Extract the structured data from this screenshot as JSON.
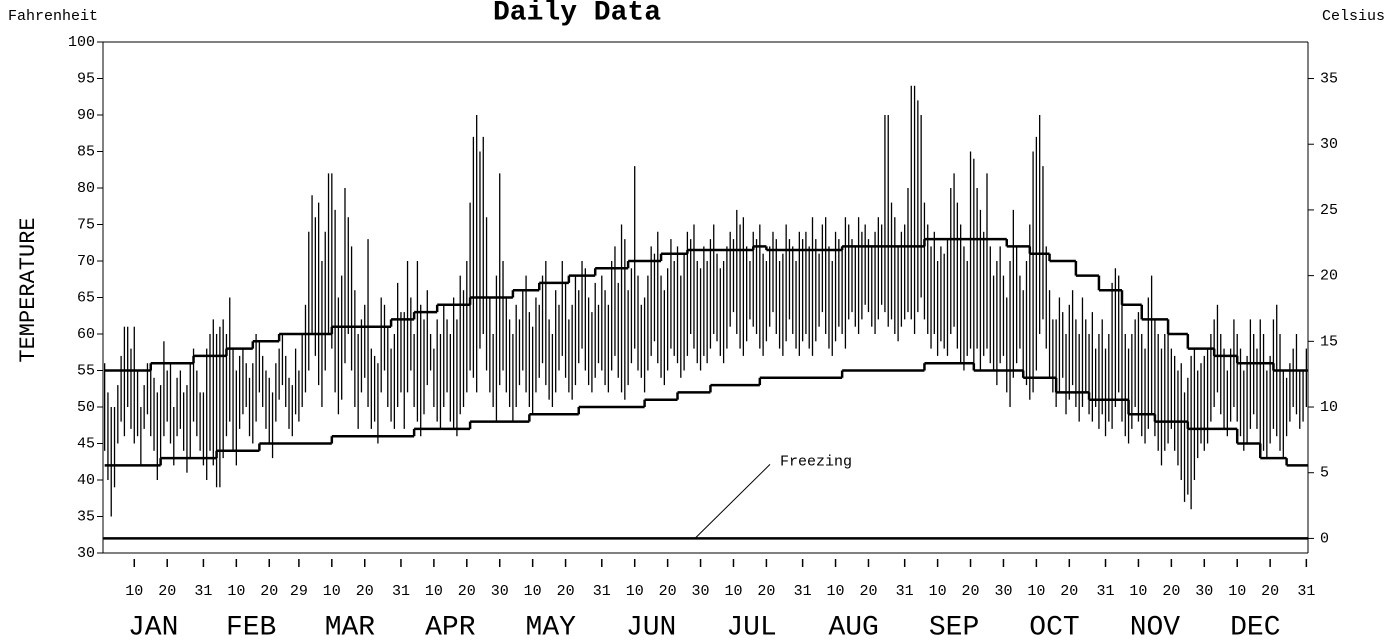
{
  "chart_data": {
    "type": "hilo",
    "title": "Daily Data",
    "y_label": "TEMPERATURE",
    "y_unit": "Fahrenheit",
    "y2_unit": "Celsius",
    "color": "#000000",
    "xlim": [
      0.5,
      366.5
    ],
    "ylim": [
      30,
      100
    ],
    "yticks": [
      30,
      35,
      40,
      45,
      50,
      55,
      60,
      65,
      70,
      75,
      80,
      85,
      90,
      95,
      100
    ],
    "y2lim": [
      -1.11,
      37.78
    ],
    "y2ticks": [
      0,
      5,
      10,
      15,
      20,
      25,
      30,
      35
    ],
    "xticks": [
      10,
      20,
      31,
      {
        "value": 41,
        "label": "10"
      },
      {
        "value": 51,
        "label": "20"
      },
      {
        "value": 60,
        "label": "29"
      },
      {
        "value": 70,
        "label": "10"
      },
      {
        "value": 80,
        "label": "20"
      },
      {
        "value": 91,
        "label": "31"
      },
      {
        "value": 101,
        "label": "10"
      },
      {
        "value": 111,
        "label": "20"
      },
      {
        "value": 121,
        "label": "30"
      },
      {
        "value": 131,
        "label": "10"
      },
      {
        "value": 141,
        "label": "20"
      },
      {
        "value": 152,
        "label": "31"
      },
      {
        "value": 162,
        "label": "10"
      },
      {
        "value": 172,
        "label": "20"
      },
      {
        "value": 182,
        "label": "30"
      },
      {
        "value": 192,
        "label": "10"
      },
      {
        "value": 202,
        "label": "20"
      },
      {
        "value": 213,
        "label": "31"
      },
      {
        "value": 223,
        "label": "10"
      },
      {
        "value": 233,
        "label": "20"
      },
      {
        "value": 244,
        "label": "31"
      },
      {
        "value": 254,
        "label": "10"
      },
      {
        "value": 264,
        "label": "20"
      },
      {
        "value": 274,
        "label": "30"
      },
      {
        "value": 284,
        "label": "10"
      },
      {
        "value": 294,
        "label": "20"
      },
      {
        "value": 305,
        "label": "31"
      },
      {
        "value": 315,
        "label": "10"
      },
      {
        "value": 325,
        "label": "20"
      },
      {
        "value": 335,
        "label": "30"
      },
      {
        "value": 345,
        "label": "10"
      },
      {
        "value": 355,
        "label": "20"
      },
      {
        "value": 366,
        "label": "31"
      }
    ],
    "months": [
      "JAN",
      "FEB",
      "MAR",
      "APR",
      "MAY",
      "JUN",
      "JUL",
      "AUG",
      "SEP",
      "OCT",
      "NOV",
      "DEC"
    ],
    "freezing": {
      "value": 32,
      "label": "Freezing"
    },
    "lows": [
      44,
      40,
      35,
      39,
      45,
      48,
      46,
      50,
      47,
      45,
      46,
      42,
      47,
      49,
      46,
      44,
      40,
      43,
      46,
      48,
      45,
      42,
      46,
      47,
      44,
      41,
      43,
      48,
      46,
      44,
      42,
      40,
      44,
      42,
      39,
      39,
      43,
      46,
      48,
      44,
      42,
      47,
      49,
      50,
      46,
      45,
      48,
      52,
      50,
      47,
      45,
      43,
      48,
      51,
      53,
      50,
      47,
      46,
      49,
      48,
      50,
      52,
      55,
      60,
      57,
      53,
      50,
      55,
      60,
      58,
      52,
      49,
      51,
      56,
      60,
      55,
      50,
      47,
      52,
      54,
      50,
      47,
      48,
      45,
      52,
      55,
      50,
      48,
      47,
      50,
      52,
      47,
      52,
      55,
      50,
      48,
      46,
      49,
      53,
      55,
      50,
      48,
      47,
      50,
      52,
      48,
      47,
      46,
      49,
      50,
      52,
      55,
      54,
      52,
      58,
      60,
      55,
      52,
      50,
      48,
      53,
      55,
      52,
      50,
      48,
      50,
      53,
      55,
      52,
      50,
      49,
      52,
      54,
      56,
      53,
      51,
      50,
      52,
      55,
      57,
      54,
      52,
      51,
      53,
      56,
      58,
      55,
      53,
      52,
      54,
      56,
      55,
      53,
      52,
      55,
      57,
      54,
      52,
      51,
      53,
      56,
      58,
      55,
      54,
      52,
      55,
      57,
      59,
      56,
      54,
      53,
      55,
      58,
      57,
      56,
      54,
      55,
      57,
      60,
      58,
      56,
      55,
      57,
      56,
      58,
      60,
      59,
      57,
      56,
      58,
      61,
      63,
      60,
      58,
      57,
      59,
      62,
      61,
      60,
      58,
      57,
      59,
      61,
      63,
      60,
      58,
      57,
      59,
      62,
      60,
      58,
      57,
      59,
      60,
      58,
      57,
      59,
      61,
      63,
      60,
      58,
      57,
      59,
      61,
      60,
      58,
      62,
      63,
      61,
      60,
      62,
      64,
      63,
      61,
      60,
      62,
      64,
      63,
      61,
      62,
      60,
      59,
      61,
      62,
      63,
      62,
      60,
      63,
      65,
      62,
      60,
      58,
      60,
      57,
      59,
      58,
      57,
      60,
      61,
      58,
      56,
      55,
      57,
      58,
      56,
      58,
      55,
      57,
      58,
      56,
      55,
      53,
      56,
      57,
      52,
      50,
      54,
      56,
      58,
      55,
      53,
      51,
      52,
      55,
      60,
      62,
      58,
      54,
      52,
      50,
      52,
      54,
      49,
      51,
      53,
      50,
      48,
      50,
      52,
      49,
      48,
      50,
      47,
      49,
      46,
      48,
      47,
      50,
      52,
      48,
      46,
      45,
      47,
      50,
      48,
      46,
      45,
      47,
      49,
      46,
      44,
      42,
      44,
      45,
      47,
      44,
      42,
      40,
      37,
      38,
      36,
      40,
      43,
      45,
      44,
      45,
      48,
      50,
      52,
      49,
      47,
      46,
      48,
      50,
      48,
      46,
      44,
      45,
      47,
      49,
      47,
      45,
      44,
      43,
      45,
      47,
      46,
      44,
      43,
      46,
      48,
      50,
      49,
      47,
      48,
      50
    ],
    "highs": [
      56,
      52,
      50,
      50,
      53,
      57,
      61,
      61,
      58,
      61,
      55,
      50,
      53,
      56,
      55,
      54,
      52,
      53,
      59,
      55,
      56,
      50,
      54,
      55,
      52,
      53,
      56,
      58,
      55,
      52,
      52,
      58,
      60,
      62,
      60,
      61,
      62,
      60,
      65,
      58,
      55,
      57,
      58,
      56,
      54,
      56,
      60,
      59,
      57,
      55,
      54,
      52,
      56,
      58,
      60,
      57,
      54,
      53,
      58,
      55,
      60,
      64,
      74,
      79,
      76,
      78,
      70,
      74,
      82,
      82,
      77,
      65,
      68,
      80,
      76,
      72,
      66,
      60,
      62,
      64,
      73,
      58,
      57,
      56,
      65,
      64,
      61,
      58,
      60,
      67,
      63,
      63,
      70,
      65,
      60,
      70,
      64,
      62,
      66,
      60,
      58,
      62,
      60,
      64,
      62,
      60,
      65,
      62,
      68,
      66,
      70,
      78,
      87,
      90,
      85,
      87,
      76,
      65,
      60,
      68,
      82,
      70,
      65,
      62,
      60,
      64,
      62,
      66,
      68,
      63,
      61,
      65,
      64,
      68,
      70,
      62,
      60,
      66,
      64,
      70,
      67,
      62,
      64,
      68,
      66,
      70,
      69,
      65,
      63,
      67,
      64,
      68,
      66,
      64,
      70,
      72,
      67,
      75,
      73,
      66,
      69,
      83,
      68,
      64,
      65,
      68,
      72,
      71,
      74,
      68,
      66,
      69,
      73,
      70,
      72,
      68,
      71,
      74,
      73,
      75,
      70,
      69,
      72,
      70,
      73,
      75,
      71,
      69,
      70,
      72,
      74,
      73,
      77,
      75,
      76,
      72,
      70,
      74,
      73,
      75,
      71,
      70,
      72,
      74,
      73,
      70,
      71,
      75,
      73,
      72,
      70,
      74,
      73,
      74,
      72,
      76,
      73,
      71,
      75,
      76,
      72,
      70,
      74,
      73,
      72,
      76,
      75,
      73,
      72,
      76,
      74,
      75,
      73,
      72,
      74,
      76,
      75,
      90,
      90,
      78,
      76,
      72,
      74,
      75,
      80,
      94,
      94,
      92,
      90,
      78,
      75,
      72,
      74,
      70,
      72,
      71,
      73,
      80,
      82,
      78,
      75,
      72,
      70,
      85,
      84,
      80,
      77,
      74,
      82,
      72,
      68,
      70,
      72,
      68,
      65,
      70,
      77,
      72,
      68,
      66,
      70,
      75,
      85,
      87,
      90,
      83,
      72,
      66,
      62,
      62,
      65,
      63,
      60,
      64,
      66,
      62,
      60,
      65,
      62,
      60,
      63,
      58,
      60,
      62,
      58,
      60,
      67,
      69,
      68,
      65,
      60,
      58,
      60,
      62,
      63,
      60,
      58,
      65,
      68,
      62,
      60,
      58,
      60,
      62,
      58,
      57,
      55,
      56,
      52,
      54,
      57,
      58,
      55,
      56,
      57,
      58,
      60,
      62,
      64,
      60,
      58,
      55,
      58,
      62,
      60,
      58,
      55,
      57,
      62,
      60,
      58,
      62,
      60,
      55,
      57,
      62,
      64,
      60,
      55,
      54,
      56,
      58,
      60,
      55,
      55,
      58
    ],
    "normal_high": {
      "x": [
        1,
        15,
        28,
        38,
        46,
        54,
        70,
        88,
        95,
        102,
        112,
        125,
        133,
        142,
        150,
        160,
        170,
        178,
        198,
        202,
        225,
        250,
        275,
        282,
        288,
        296,
        303,
        310,
        316,
        324,
        330,
        338,
        345,
        356
      ],
      "values": [
        55,
        56,
        57,
        58,
        59,
        60,
        61,
        62,
        63,
        64,
        65,
        66,
        67,
        68,
        69,
        70,
        71,
        71.5,
        72,
        71.5,
        72,
        73,
        72,
        71,
        70,
        68,
        66,
        64,
        62,
        60,
        58,
        57,
        56,
        55
      ]
    },
    "normal_low": {
      "x": [
        1,
        18,
        35,
        48,
        70,
        95,
        112,
        130,
        145,
        165,
        175,
        185,
        200,
        225,
        250,
        265,
        280,
        290,
        300,
        312,
        320,
        330,
        345,
        352,
        360
      ],
      "values": [
        42,
        43,
        44,
        45,
        46,
        47,
        48,
        49,
        50,
        51,
        52,
        53,
        54,
        55,
        56,
        55,
        54,
        52,
        51,
        49,
        48,
        47,
        45,
        43,
        42
      ]
    }
  }
}
